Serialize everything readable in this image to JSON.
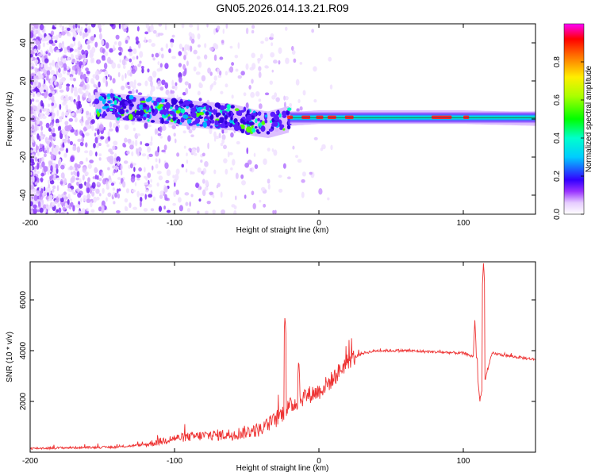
{
  "figure_title": "GN05.2026.014.13.21.R09",
  "chart_data": [
    {
      "type": "heatmap",
      "title": "GN05.2026.014.13.21.R09",
      "xlabel": "Height of straight line (km)",
      "ylabel": "Frequency (Hz)",
      "xlim": [
        -200,
        150
      ],
      "ylim": [
        -50,
        50
      ],
      "xticks": [
        -200,
        -100,
        0,
        100
      ],
      "yticks": [
        -40,
        -20,
        0,
        20,
        40
      ],
      "colorbar": {
        "label": "Normalized spectral amplitude",
        "range": [
          0,
          1
        ],
        "ticks": [
          0.0,
          0.2,
          0.4,
          0.6,
          0.8
        ]
      },
      "ridge": {
        "description_points": [
          {
            "x": -150,
            "y": 7
          },
          {
            "x": -120,
            "y": 5
          },
          {
            "x": -100,
            "y": 4
          },
          {
            "x": -80,
            "y": 2
          },
          {
            "x": -60,
            "y": 1
          },
          {
            "x": -45,
            "y": -2
          },
          {
            "x": -35,
            "y": -3
          },
          {
            "x": -20,
            "y": 0
          },
          {
            "x": 0,
            "y": 1
          },
          {
            "x": 50,
            "y": 1
          },
          {
            "x": 100,
            "y": 1
          },
          {
            "x": 150,
            "y": 0
          }
        ]
      }
    },
    {
      "type": "line",
      "xlabel": "Height of straight line (km)",
      "ylabel": "SNR (10 * v/v)",
      "xlim": [
        -200,
        150
      ],
      "ylim": [
        0,
        7500
      ],
      "xticks": [
        -200,
        -100,
        0,
        100
      ],
      "yticks": [
        2000,
        4000,
        6000
      ],
      "series": [
        {
          "name": "SNR",
          "color": "#ee3333",
          "x": [
            -200,
            -170,
            -140,
            -120,
            -100,
            -80,
            -60,
            -40,
            -30,
            -20,
            -10,
            0,
            10,
            20,
            30,
            40,
            60,
            80,
            100,
            110,
            112,
            120,
            130,
            150
          ],
          "y": [
            150,
            180,
            200,
            300,
            550,
            650,
            700,
            900,
            1300,
            1800,
            2200,
            2400,
            2900,
            3600,
            3900,
            4000,
            4000,
            3950,
            3900,
            3700,
            2200,
            3900,
            3800,
            3650
          ]
        }
      ],
      "spikes": [
        {
          "x": -23.5,
          "y": 5400
        },
        {
          "x": -14,
          "y": 3700
        },
        {
          "x": 108,
          "y": 5200
        },
        {
          "x": 114,
          "y": 7500
        }
      ]
    }
  ]
}
